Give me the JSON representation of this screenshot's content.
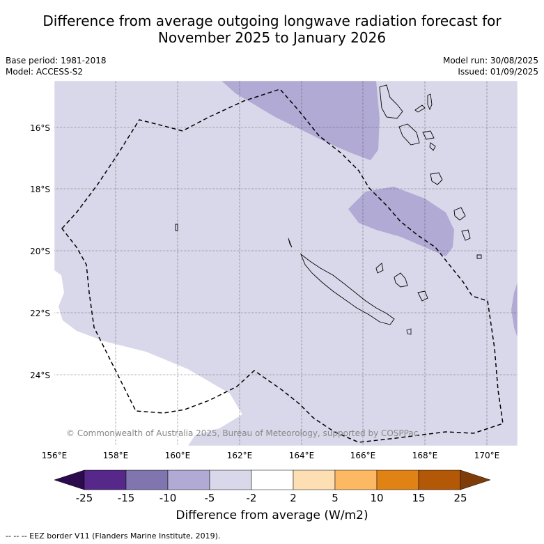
{
  "title": {
    "line1": "Difference from average outgoing longwave radiation forecast for",
    "line2": "November 2025 to January 2026"
  },
  "meta": {
    "base_period": "Base period: 1981-2018",
    "model": "Model: ACCESS-S2",
    "model_run": "Model run: 30/08/2025",
    "issued": "Issued: 01/09/2025"
  },
  "map": {
    "copyright": "© Commonwealth of Australia 2025, Bureau of Meteorology, supported by COSPPac",
    "lon_labels": [
      "156°E",
      "158°E",
      "160°E",
      "162°E",
      "164°E",
      "166°E",
      "168°E",
      "170°E"
    ],
    "lat_labels": [
      "16°S",
      "18°S",
      "20°S",
      "22°S",
      "24°S"
    ],
    "colors": {
      "band_m5_m2": "#d8d8ea",
      "band_m10_m5": "#b0aad4",
      "eez_line": "#000000"
    }
  },
  "colorbar": {
    "title": "Difference from average (W/m2)",
    "tick_labels": [
      "-25",
      "-15",
      "-10",
      "-5",
      "-2",
      "2",
      "5",
      "10",
      "15",
      "25"
    ],
    "colors": [
      "#2d0a4e",
      "#55288a",
      "#8075ae",
      "#b0aad4",
      "#d8d8ea",
      "#ffffff",
      "#fedeb3",
      "#fdb863",
      "#e08214",
      "#b35806",
      "#7f3b08"
    ]
  },
  "footer": "--  --  -- EEZ border V11 (Flanders Marine Institute, 2019)."
}
